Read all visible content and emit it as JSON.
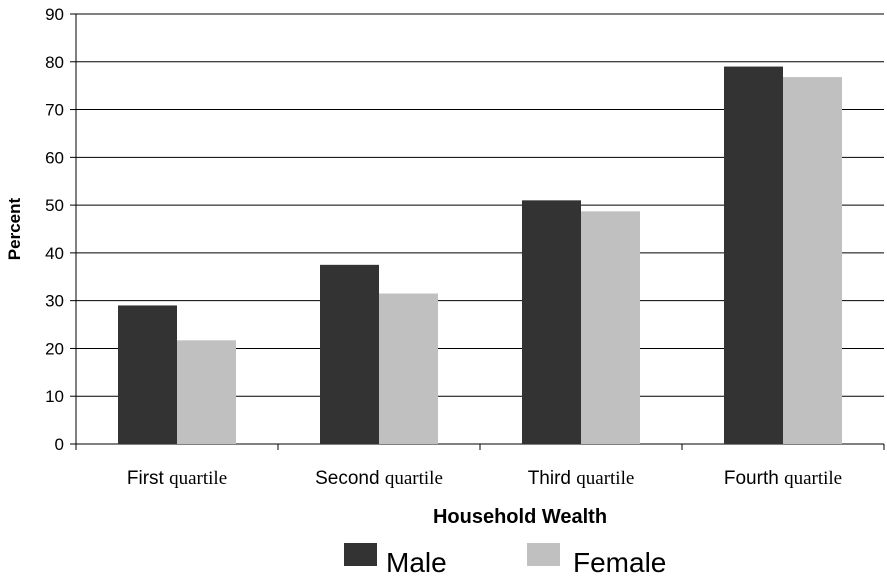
{
  "chart_data": {
    "type": "bar",
    "ylabel": "Percent",
    "xlabel": "Household Wealth",
    "ylim": [
      0,
      90
    ],
    "yticks": [
      0,
      10,
      20,
      30,
      40,
      50,
      60,
      70,
      80,
      90
    ],
    "grid": true,
    "legend_position": "bottom",
    "categories": [
      {
        "lead": "First",
        "rest": "quartile"
      },
      {
        "lead": "Second",
        "rest": "quartile"
      },
      {
        "lead": "Third",
        "rest": "quartile"
      },
      {
        "lead": "Fourth",
        "rest": "quartile"
      }
    ],
    "series": [
      {
        "name": "Male",
        "color": "#333333",
        "values": [
          29,
          37.5,
          51,
          79
        ]
      },
      {
        "name": "Female",
        "color": "#c0c0c0",
        "values": [
          21.7,
          31.5,
          48.7,
          76.8
        ]
      }
    ]
  }
}
